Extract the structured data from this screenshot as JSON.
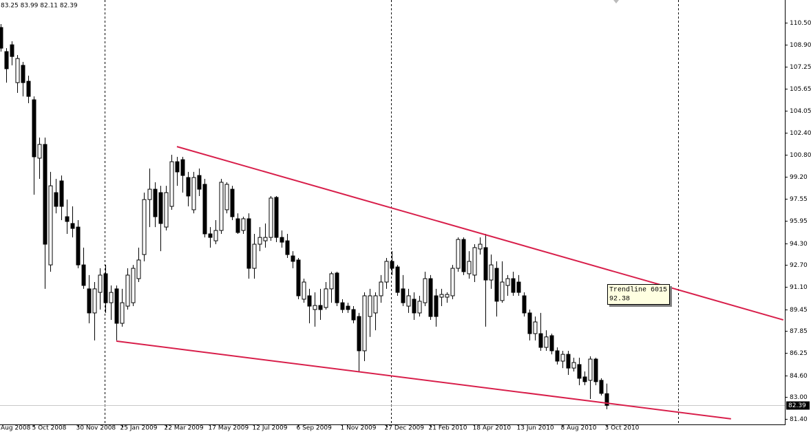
{
  "chart_data": {
    "type": "candlestick",
    "header": "83.25 83.99 82.11 82.39",
    "ohlc": [
      [
        110.15,
        110.4,
        108.38,
        108.63
      ],
      [
        108.38,
        108.63,
        106.1,
        107.12
      ],
      [
        108.88,
        109.14,
        107.37,
        108.02
      ],
      [
        106.1,
        108.13,
        105.35,
        107.87
      ],
      [
        107.37,
        107.62,
        105.09,
        106.1
      ],
      [
        106.2,
        106.61,
        104.59,
        105.09
      ],
      [
        104.84,
        105.09,
        97.87,
        100.65
      ],
      [
        100.55,
        102.06,
        99.03,
        101.56
      ],
      [
        101.56,
        102.06,
        90.95,
        94.23
      ],
      [
        92.71,
        99.54,
        92.21,
        98.52
      ],
      [
        98.02,
        99.03,
        96.5,
        97.01
      ],
      [
        98.88,
        99.28,
        96.0,
        97.01
      ],
      [
        96.25,
        97.51,
        94.99,
        95.9
      ],
      [
        95.75,
        97.01,
        94.73,
        95.39
      ],
      [
        95.49,
        96.0,
        92.46,
        92.71
      ],
      [
        92.71,
        93.98,
        90.95,
        91.2
      ],
      [
        90.95,
        91.96,
        88.42,
        89.18
      ],
      [
        89.18,
        91.45,
        87.16,
        90.95
      ],
      [
        90.69,
        92.46,
        89.43,
        91.96
      ],
      [
        92.06,
        92.71,
        89.18,
        89.93
      ],
      [
        89.93,
        91.2,
        88.67,
        90.69
      ],
      [
        90.95,
        91.2,
        87.16,
        88.42
      ],
      [
        88.42,
        90.95,
        88.17,
        89.93
      ],
      [
        89.68,
        92.46,
        89.43,
        91.96
      ],
      [
        89.93,
        92.71,
        89.68,
        92.46
      ],
      [
        91.7,
        93.98,
        91.45,
        93.07
      ],
      [
        93.47,
        98.02,
        92.97,
        97.51
      ],
      [
        97.51,
        99.79,
        95.49,
        98.27
      ],
      [
        98.27,
        98.78,
        95.49,
        96.25
      ],
      [
        98.02,
        98.52,
        93.72,
        95.75
      ],
      [
        95.49,
        98.52,
        95.24,
        98.02
      ],
      [
        97.01,
        100.8,
        96.76,
        100.29
      ],
      [
        100.29,
        100.65,
        98.52,
        99.54
      ],
      [
        100.44,
        100.65,
        98.02,
        99.28
      ],
      [
        99.13,
        99.54,
        97.01,
        97.77
      ],
      [
        96.76,
        99.54,
        96.5,
        99.13
      ],
      [
        99.28,
        99.79,
        97.77,
        98.27
      ],
      [
        98.63,
        99.03,
        94.73,
        94.99
      ],
      [
        94.99,
        95.49,
        93.98,
        94.73
      ],
      [
        94.48,
        96.0,
        94.23,
        95.24
      ],
      [
        95.24,
        99.03,
        94.99,
        98.78
      ],
      [
        96.76,
        98.78,
        96.5,
        98.63
      ],
      [
        98.27,
        98.52,
        96.0,
        96.25
      ],
      [
        96.1,
        96.5,
        94.99,
        95.09
      ],
      [
        95.24,
        96.25,
        94.99,
        96.1
      ],
      [
        96.1,
        96.5,
        91.7,
        92.46
      ],
      [
        92.46,
        94.99,
        91.7,
        94.23
      ],
      [
        94.23,
        95.49,
        93.72,
        94.73
      ],
      [
        94.48,
        95.75,
        93.98,
        94.73
      ],
      [
        94.73,
        97.77,
        94.48,
        97.62
      ],
      [
        97.67,
        97.77,
        94.38,
        94.73
      ],
      [
        94.73,
        95.24,
        93.98,
        94.38
      ],
      [
        94.48,
        94.99,
        93.22,
        93.47
      ],
      [
        93.37,
        93.72,
        92.46,
        92.97
      ],
      [
        93.07,
        93.22,
        90.19,
        90.44
      ],
      [
        90.19,
        91.7,
        89.93,
        91.45
      ],
      [
        90.44,
        90.95,
        88.42,
        89.68
      ],
      [
        89.43,
        90.69,
        88.17,
        89.73
      ],
      [
        89.73,
        90.95,
        88.67,
        89.43
      ],
      [
        89.58,
        91.45,
        89.43,
        90.95
      ],
      [
        90.95,
        92.21,
        89.93,
        92.06
      ],
      [
        92.11,
        92.21,
        89.68,
        89.93
      ],
      [
        89.93,
        90.19,
        89.18,
        89.43
      ],
      [
        89.68,
        89.93,
        89.18,
        89.43
      ],
      [
        89.43,
        89.68,
        88.42,
        88.67
      ],
      [
        88.92,
        89.18,
        84.88,
        86.4
      ],
      [
        86.4,
        90.69,
        85.64,
        90.44
      ],
      [
        88.92,
        90.95,
        87.42,
        90.44
      ],
      [
        89.18,
        90.69,
        87.91,
        90.44
      ],
      [
        90.44,
        91.96,
        89.93,
        91.45
      ],
      [
        91.45,
        93.22,
        90.95,
        92.97
      ],
      [
        92.97,
        93.72,
        91.96,
        92.46
      ],
      [
        92.56,
        92.71,
        90.44,
        90.69
      ],
      [
        90.95,
        91.96,
        89.68,
        89.93
      ],
      [
        89.68,
        90.95,
        89.18,
        90.44
      ],
      [
        90.19,
        90.69,
        88.67,
        89.18
      ],
      [
        89.18,
        90.44,
        88.92,
        90.04
      ],
      [
        89.93,
        92.21,
        89.68,
        91.7
      ],
      [
        91.7,
        91.96,
        88.67,
        88.92
      ],
      [
        90.44,
        90.95,
        88.17,
        88.92
      ],
      [
        90.34,
        90.95,
        89.68,
        90.54
      ],
      [
        90.34,
        90.69,
        89.93,
        90.54
      ],
      [
        90.44,
        92.71,
        90.19,
        92.46
      ],
      [
        92.46,
        94.73,
        92.21,
        94.58
      ],
      [
        94.58,
        94.73,
        91.96,
        92.21
      ],
      [
        92.06,
        93.72,
        91.7,
        92.97
      ],
      [
        91.96,
        94.23,
        91.45,
        93.98
      ],
      [
        93.88,
        94.73,
        93.47,
        94.23
      ],
      [
        93.98,
        94.99,
        88.17,
        91.6
      ],
      [
        91.6,
        93.47,
        90.95,
        92.71
      ],
      [
        92.46,
        92.97,
        88.92,
        90.04
      ],
      [
        90.09,
        92.97,
        89.93,
        91.45
      ],
      [
        91.2,
        91.96,
        90.44,
        91.7
      ],
      [
        91.7,
        92.21,
        90.44,
        90.69
      ],
      [
        91.45,
        91.96,
        90.44,
        90.69
      ],
      [
        90.44,
        90.69,
        88.92,
        89.18
      ],
      [
        89.18,
        89.43,
        87.16,
        87.66
      ],
      [
        87.66,
        88.92,
        87.16,
        88.52
      ],
      [
        87.66,
        89.18,
        86.4,
        86.65
      ],
      [
        86.65,
        87.91,
        86.4,
        87.42
      ],
      [
        87.51,
        87.66,
        86.14,
        86.4
      ],
      [
        86.4,
        86.65,
        85.39,
        85.64
      ],
      [
        85.64,
        86.4,
        85.13,
        86.14
      ],
      [
        86.14,
        86.4,
        84.63,
        85.13
      ],
      [
        85.13,
        85.89,
        84.88,
        85.54
      ],
      [
        85.39,
        85.89,
        83.87,
        84.38
      ],
      [
        84.48,
        84.88,
        83.87,
        84.13
      ],
      [
        84.23,
        85.99,
        82.86,
        85.79
      ],
      [
        85.79,
        85.89,
        83.87,
        84.13
      ],
      [
        84.23,
        84.38,
        83.12,
        83.27
      ],
      [
        83.25,
        83.99,
        82.11,
        82.39
      ]
    ],
    "xlim": [
      -0.125,
      142.375
    ],
    "xticks": [
      {
        "value": -2,
        "label": "Aug 2008"
      },
      {
        "value": 6,
        "label": "5 Oct 2008"
      },
      {
        "value": 14,
        "label": "30 Nov 2008"
      },
      {
        "value": 22,
        "label": "25 Jan 2009"
      },
      {
        "value": 30,
        "label": "22 Mar 2009"
      },
      {
        "value": 38,
        "label": "17 May 2009"
      },
      {
        "value": 46,
        "label": "12 Jul 2009"
      },
      {
        "value": 54,
        "label": "6 Sep 2009"
      },
      {
        "value": 62,
        "label": "1 Nov 2009"
      },
      {
        "value": 70,
        "label": "27 Dec 2009"
      },
      {
        "value": 78,
        "label": "21 Feb 2010"
      },
      {
        "value": 86,
        "label": "18 Apr 2010"
      },
      {
        "value": 94,
        "label": "13 Jun 2010"
      },
      {
        "value": 102,
        "label": "8 Aug 2010"
      },
      {
        "value": 110,
        "label": "3 Oct 2010"
      }
    ],
    "ylim": [
      80.99,
      112.17
    ],
    "yticks": [
      {
        "value": 110.5,
        "label": "110.50"
      },
      {
        "value": 108.9,
        "label": "108.90"
      },
      107.25,
      105.65,
      104.05,
      {
        "value": 102.4,
        "label": "102.40"
      },
      {
        "value": 100.8,
        "label": "100.80"
      },
      {
        "value": 99.2,
        "label": "99.20"
      },
      97.55,
      95.95,
      {
        "value": 94.3,
        "label": "94.30"
      },
      {
        "value": 92.7,
        "label": "92.70"
      },
      {
        "value": 91.1,
        "label": "91.10"
      },
      89.45,
      87.85,
      86.25,
      {
        "value": 84.6,
        "label": "84.60"
      },
      {
        "value": 83,
        "label": "83.00"
      },
      {
        "value": 81.4,
        "label": "81.40"
      }
    ],
    "trendlines": [
      {
        "x1": 32,
        "y1": 101.4,
        "x2": 142.1,
        "y2": 88.67,
        "color": "#d81e4a"
      },
      {
        "x1": 21,
        "y1": 87.11,
        "x2": 132.6,
        "y2": 81.4,
        "color": "#d81e4a"
      }
    ],
    "annotation": {
      "name": "Trendline 6015",
      "value": "92.38"
    }
  }
}
